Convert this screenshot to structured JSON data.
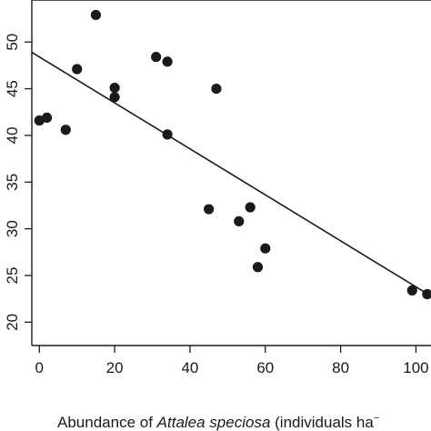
{
  "chart_data": {
    "type": "scatter",
    "title": "",
    "xlabel": "",
    "xlabel_parts": [
      "Abundance of ",
      "Attalea speciosa",
      " (individuals ha"
    ],
    "xlabel_superscript": "−",
    "ylabel": "",
    "xlim": [
      -2,
      104
    ],
    "ylim": [
      17.5,
      54.5
    ],
    "x_ticks": [
      0,
      20,
      40,
      60,
      80,
      100
    ],
    "y_ticks": [
      20,
      25,
      30,
      35,
      40,
      45,
      50
    ],
    "x_tick_labels": [
      "0",
      "20",
      "40",
      "60",
      "80",
      "100"
    ],
    "y_tick_labels": [
      "20",
      "25",
      "30",
      "35",
      "40",
      "45",
      "50"
    ],
    "grid": false,
    "legend": "none",
    "point_color": "#1a1a1a",
    "line_color": "#1a1a1a",
    "series": [
      {
        "points": [
          {
            "x": 0,
            "y": 41.6
          },
          {
            "x": 2,
            "y": 41.9
          },
          {
            "x": 7,
            "y": 40.6
          },
          {
            "x": 10,
            "y": 47.1
          },
          {
            "x": 15,
            "y": 52.9
          },
          {
            "x": 20,
            "y": 45.1
          },
          {
            "x": 20,
            "y": 44.1
          },
          {
            "x": 31,
            "y": 48.4
          },
          {
            "x": 34,
            "y": 47.9
          },
          {
            "x": 34,
            "y": 40.1
          },
          {
            "x": 47,
            "y": 45.0
          },
          {
            "x": 45,
            "y": 32.1
          },
          {
            "x": 53,
            "y": 30.8
          },
          {
            "x": 56,
            "y": 32.3
          },
          {
            "x": 60,
            "y": 27.9
          },
          {
            "x": 58,
            "y": 25.9
          },
          {
            "x": 99,
            "y": 23.4
          },
          {
            "x": 103,
            "y": 23.0
          }
        ]
      }
    ],
    "fit_line": {
      "x": [
        -2,
        104
      ],
      "y": [
        48.9,
        22.8
      ]
    }
  }
}
